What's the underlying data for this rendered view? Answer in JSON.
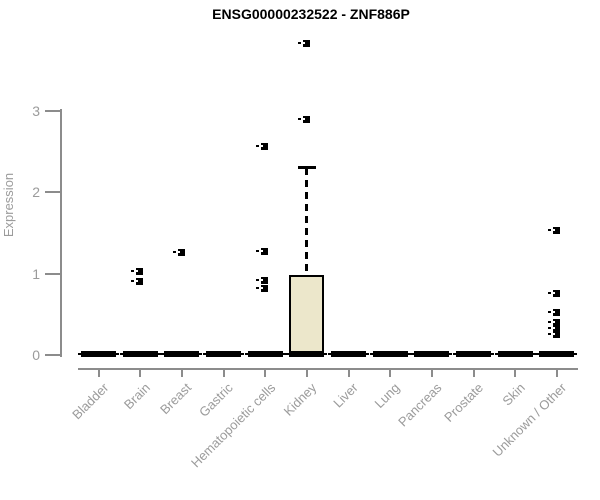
{
  "chart_data": {
    "type": "boxplot",
    "title": "ENSG00000232522 - ZNF886P",
    "ylabel": "Expression",
    "xlabel": "",
    "ylim": [
      0,
      3.9
    ],
    "yticks": [
      0,
      1,
      2,
      3
    ],
    "grid": false,
    "legend": "none",
    "categories": [
      "Bladder",
      "Brain",
      "Breast",
      "Gastric",
      "Hematopoietic cells",
      "Kidney",
      "Liver",
      "Lung",
      "Pancreas",
      "Prostate",
      "Skin",
      "Unknown / Other"
    ],
    "boxes": [
      {
        "category": "Bladder",
        "median": 0,
        "q1": 0,
        "q3": 0,
        "whisker_low": 0,
        "whisker_high": 0,
        "outliers": []
      },
      {
        "category": "Brain",
        "median": 0,
        "q1": 0,
        "q3": 0,
        "whisker_low": 0,
        "whisker_high": 0,
        "outliers": [
          0.91,
          1.03
        ]
      },
      {
        "category": "Breast",
        "median": 0,
        "q1": 0,
        "q3": 0,
        "whisker_low": 0,
        "whisker_high": 0,
        "outliers": [
          1.26
        ]
      },
      {
        "category": "Gastric",
        "median": 0,
        "q1": 0,
        "q3": 0,
        "whisker_low": 0,
        "whisker_high": 0,
        "outliers": []
      },
      {
        "category": "Hematopoietic cells",
        "median": 0,
        "q1": 0,
        "q3": 0,
        "whisker_low": 0,
        "whisker_high": 0,
        "outliers": [
          0.82,
          0.92,
          1.28,
          2.56
        ]
      },
      {
        "category": "Kidney",
        "median": 0,
        "q1": 0,
        "q3": 0.98,
        "whisker_low": 0,
        "whisker_high": 2.32,
        "outliers": [
          2.89,
          3.83
        ]
      },
      {
        "category": "Liver",
        "median": 0,
        "q1": 0,
        "q3": 0,
        "whisker_low": 0,
        "whisker_high": 0,
        "outliers": []
      },
      {
        "category": "Lung",
        "median": 0,
        "q1": 0,
        "q3": 0,
        "whisker_low": 0,
        "whisker_high": 0,
        "outliers": []
      },
      {
        "category": "Pancreas",
        "median": 0,
        "q1": 0,
        "q3": 0,
        "whisker_low": 0,
        "whisker_high": 0,
        "outliers": []
      },
      {
        "category": "Prostate",
        "median": 0,
        "q1": 0,
        "q3": 0,
        "whisker_low": 0,
        "whisker_high": 0,
        "outliers": []
      },
      {
        "category": "Skin",
        "median": 0,
        "q1": 0,
        "q3": 0,
        "whisker_low": 0,
        "whisker_high": 0,
        "outliers": []
      },
      {
        "category": "Unknown / Other",
        "median": 0,
        "q1": 0,
        "q3": 0,
        "whisker_low": 0,
        "whisker_high": 0,
        "outliers": [
          0.26,
          0.33,
          0.4,
          0.53,
          0.76,
          1.53
        ]
      }
    ],
    "colors": {
      "box_fill": "#ece7cb",
      "box_border": "#000000",
      "median": "#000000",
      "outlier": "#000000",
      "axis": "#8c8c8c",
      "tick_label": "#9b9b9b",
      "title": "#000000",
      "background": "#ffffff"
    }
  }
}
